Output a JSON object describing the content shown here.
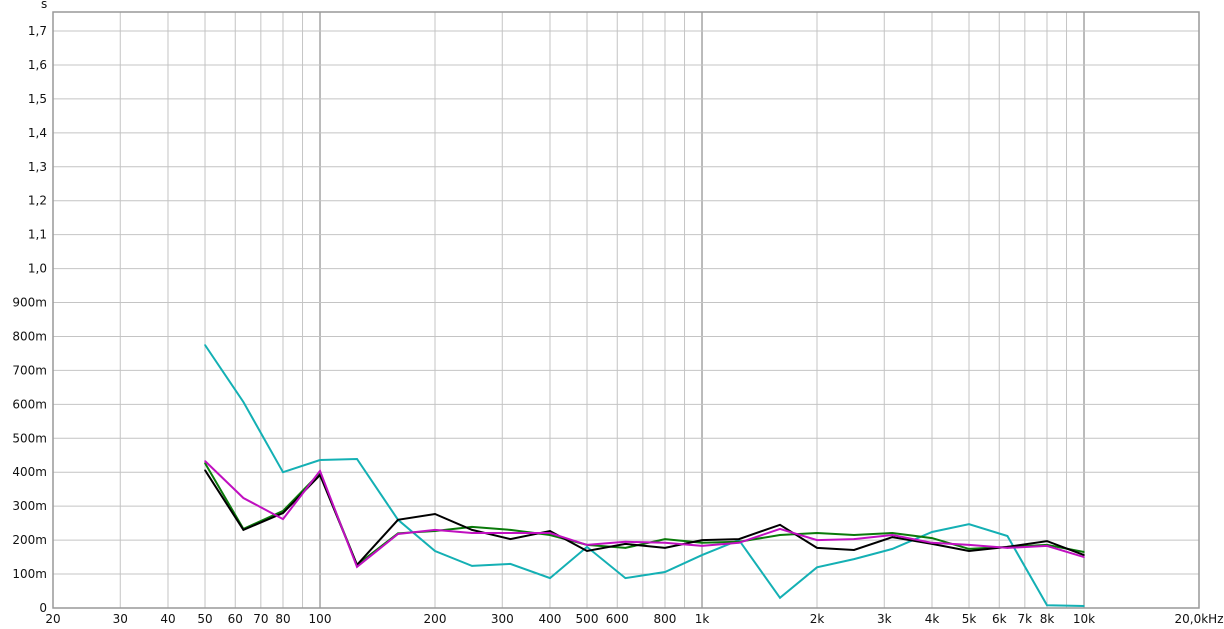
{
  "chart_data": {
    "type": "line",
    "ylabel": "s",
    "x_scale": "log",
    "xlim": [
      20,
      20000
    ],
    "ylim": [
      0,
      1.75
    ],
    "grid": true,
    "x_tick_labels": [
      {
        "f": 20,
        "label": "20"
      },
      {
        "f": 30,
        "label": "30"
      },
      {
        "f": 40,
        "label": "40"
      },
      {
        "f": 50,
        "label": "50"
      },
      {
        "f": 60,
        "label": "60"
      },
      {
        "f": 70,
        "label": "70"
      },
      {
        "f": 80,
        "label": "80"
      },
      {
        "f": 100,
        "label": "100"
      },
      {
        "f": 200,
        "label": "200"
      },
      {
        "f": 300,
        "label": "300"
      },
      {
        "f": 400,
        "label": "400"
      },
      {
        "f": 500,
        "label": "500"
      },
      {
        "f": 600,
        "label": "600"
      },
      {
        "f": 800,
        "label": "800"
      },
      {
        "f": 1000,
        "label": "1k"
      },
      {
        "f": 2000,
        "label": "2k"
      },
      {
        "f": 3000,
        "label": "3k"
      },
      {
        "f": 4000,
        "label": "4k"
      },
      {
        "f": 5000,
        "label": "5k"
      },
      {
        "f": 6000,
        "label": "6k"
      },
      {
        "f": 7000,
        "label": "7k"
      },
      {
        "f": 8000,
        "label": "8k"
      },
      {
        "f": 10000,
        "label": "10k"
      },
      {
        "f": 20000,
        "label": "20,0kHz"
      }
    ],
    "y_tick_labels": [
      {
        "v": 0,
        "label": "0"
      },
      {
        "v": 0.1,
        "label": "100m"
      },
      {
        "v": 0.2,
        "label": "200m"
      },
      {
        "v": 0.3,
        "label": "300m"
      },
      {
        "v": 0.4,
        "label": "400m"
      },
      {
        "v": 0.5,
        "label": "500m"
      },
      {
        "v": 0.6,
        "label": "600m"
      },
      {
        "v": 0.7,
        "label": "700m"
      },
      {
        "v": 0.8,
        "label": "800m"
      },
      {
        "v": 0.9,
        "label": "900m"
      },
      {
        "v": 1.0,
        "label": "1,0"
      },
      {
        "v": 1.1,
        "label": "1,1"
      },
      {
        "v": 1.2,
        "label": "1,2"
      },
      {
        "v": 1.3,
        "label": "1,3"
      },
      {
        "v": 1.4,
        "label": "1,4"
      },
      {
        "v": 1.5,
        "label": "1,5"
      },
      {
        "v": 1.6,
        "label": "1,6"
      },
      {
        "v": 1.7,
        "label": "1,7"
      }
    ],
    "x": [
      50,
      63,
      80,
      100,
      125,
      160,
      200,
      250,
      315,
      400,
      500,
      630,
      800,
      1000,
      1250,
      1600,
      2000,
      2500,
      3150,
      4000,
      5000,
      6300,
      8000,
      10000
    ],
    "series": [
      {
        "color": "#14b0b4",
        "values": [
          0.775,
          0.607,
          0.4,
          0.436,
          0.439,
          0.26,
          0.168,
          0.124,
          0.13,
          0.088,
          0.18,
          0.088,
          0.106,
          0.156,
          0.2,
          0.03,
          0.12,
          0.144,
          0.174,
          0.224,
          0.247,
          0.212,
          0.008,
          0.006
        ]
      },
      {
        "color": "#0a7a0a",
        "values": [
          0.427,
          0.233,
          0.286,
          0.398,
          0.127,
          0.22,
          0.227,
          0.239,
          0.23,
          0.215,
          0.186,
          0.177,
          0.203,
          0.192,
          0.195,
          0.215,
          0.221,
          0.215,
          0.221,
          0.206,
          0.174,
          0.18,
          0.186,
          0.165
        ]
      },
      {
        "color": "#000000",
        "values": [
          0.406,
          0.23,
          0.28,
          0.392,
          0.127,
          0.26,
          0.277,
          0.23,
          0.203,
          0.227,
          0.168,
          0.189,
          0.177,
          0.2,
          0.203,
          0.245,
          0.177,
          0.171,
          0.209,
          0.189,
          0.168,
          0.18,
          0.197,
          0.156
        ]
      },
      {
        "color": "#c010c0",
        "values": [
          0.433,
          0.324,
          0.262,
          0.404,
          0.121,
          0.218,
          0.23,
          0.221,
          0.221,
          0.221,
          0.186,
          0.195,
          0.192,
          0.183,
          0.192,
          0.233,
          0.2,
          0.203,
          0.215,
          0.192,
          0.186,
          0.177,
          0.183,
          0.15
        ]
      }
    ]
  }
}
